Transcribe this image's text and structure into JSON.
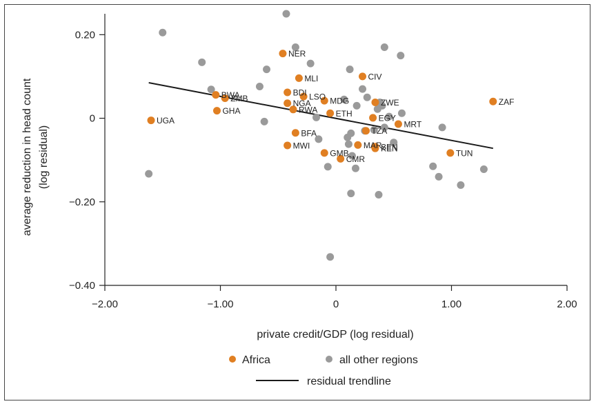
{
  "chart_data": {
    "type": "scatter",
    "xlabel": "private credit/GDP (log residual)",
    "ylabel": [
      "average reduction in head count",
      "(log residual)"
    ],
    "xlim": [
      -2.0,
      2.0
    ],
    "ylim": [
      -0.4,
      0.25
    ],
    "x_ticks": [
      -2.0,
      -1.0,
      0,
      1.0,
      2.0
    ],
    "x_tick_labels": [
      "−2.00",
      "−1.00",
      "0",
      "1.00",
      "2.00"
    ],
    "y_ticks": [
      -0.4,
      -0.2,
      0,
      0.2
    ],
    "y_tick_labels": [
      "−0.40",
      "−0.20",
      "0",
      "0.20"
    ],
    "grid": false,
    "legend_position": "bottom",
    "colors": {
      "africa": "#E07F22",
      "other": "#9A9A9A",
      "trend": "#1a1a1a"
    },
    "series": [
      {
        "name": "Africa",
        "color": "#E07F22",
        "points": [
          {
            "label": "UGA",
            "x": -1.6,
            "y": -0.005
          },
          {
            "label": "BWA",
            "x": -1.04,
            "y": 0.056
          },
          {
            "label": "ZMB",
            "x": -0.96,
            "y": 0.048
          },
          {
            "label": "GHA",
            "x": -1.03,
            "y": 0.018
          },
          {
            "label": "NER",
            "x": -0.46,
            "y": 0.155
          },
          {
            "label": "MLI",
            "x": -0.32,
            "y": 0.096
          },
          {
            "label": "BDI",
            "x": -0.42,
            "y": 0.062
          },
          {
            "label": "LSO",
            "x": -0.28,
            "y": 0.052
          },
          {
            "label": "NGA",
            "x": -0.42,
            "y": 0.036
          },
          {
            "label": "RWA",
            "x": -0.37,
            "y": 0.021
          },
          {
            "label": "MDG",
            "x": -0.1,
            "y": 0.042
          },
          {
            "label": "ETH",
            "x": -0.05,
            "y": 0.012
          },
          {
            "label": "CIV",
            "x": 0.23,
            "y": 0.1
          },
          {
            "label": "ZWE",
            "x": 0.34,
            "y": 0.038
          },
          {
            "label": "EGY",
            "x": 0.32,
            "y": 0.001
          },
          {
            "label": "MRT",
            "x": 0.54,
            "y": -0.014
          },
          {
            "label": "ZAF",
            "x": 1.36,
            "y": 0.04
          },
          {
            "label": "TZA",
            "x": 0.26,
            "y": -0.03
          },
          {
            "label": "BFA",
            "x": -0.35,
            "y": -0.035
          },
          {
            "label": "MWI",
            "x": -0.42,
            "y": -0.065
          },
          {
            "label": "MAR",
            "x": 0.19,
            "y": -0.064
          },
          {
            "label": "SEN",
            "x": 0.34,
            "y": -0.068
          },
          {
            "label": "KEN",
            "x": 0.34,
            "y": -0.072
          },
          {
            "label": "GMB",
            "x": -0.1,
            "y": -0.083
          },
          {
            "label": "CMR",
            "x": 0.04,
            "y": -0.097
          },
          {
            "label": "TUN",
            "x": 0.99,
            "y": -0.083
          }
        ]
      },
      {
        "name": "all other regions",
        "color": "#9A9A9A",
        "points": [
          {
            "x": -0.43,
            "y": 0.25
          },
          {
            "x": -1.5,
            "y": 0.205
          },
          {
            "x": -0.35,
            "y": 0.17
          },
          {
            "x": 0.42,
            "y": 0.17
          },
          {
            "x": 0.56,
            "y": 0.15
          },
          {
            "x": -1.16,
            "y": 0.134
          },
          {
            "x": -0.22,
            "y": 0.131
          },
          {
            "x": -0.6,
            "y": 0.117
          },
          {
            "x": 0.12,
            "y": 0.117
          },
          {
            "x": -0.66,
            "y": 0.076
          },
          {
            "x": -1.08,
            "y": 0.069
          },
          {
            "x": 0.23,
            "y": 0.07
          },
          {
            "x": 0.27,
            "y": 0.05
          },
          {
            "x": 0.07,
            "y": 0.045
          },
          {
            "x": 0.38,
            "y": 0.038
          },
          {
            "x": 0.4,
            "y": 0.03
          },
          {
            "x": 0.18,
            "y": 0.03
          },
          {
            "x": 0.36,
            "y": 0.022
          },
          {
            "x": 0.57,
            "y": 0.012
          },
          {
            "x": 0.46,
            "y": 0.004
          },
          {
            "x": -0.17,
            "y": 0.002
          },
          {
            "x": -0.62,
            "y": -0.008
          },
          {
            "x": 0.92,
            "y": -0.022
          },
          {
            "x": 0.42,
            "y": -0.022
          },
          {
            "x": 0.25,
            "y": -0.03
          },
          {
            "x": 0.33,
            "y": -0.028
          },
          {
            "x": 0.13,
            "y": -0.036
          },
          {
            "x": 0.1,
            "y": -0.046
          },
          {
            "x": -0.15,
            "y": -0.05
          },
          {
            "x": 0.11,
            "y": -0.062
          },
          {
            "x": 0.5,
            "y": -0.058
          },
          {
            "x": 0.14,
            "y": -0.09
          },
          {
            "x": -0.07,
            "y": -0.116
          },
          {
            "x": 0.17,
            "y": -0.12
          },
          {
            "x": 0.84,
            "y": -0.115
          },
          {
            "x": -1.62,
            "y": -0.133
          },
          {
            "x": 0.89,
            "y": -0.14
          },
          {
            "x": 1.28,
            "y": -0.122
          },
          {
            "x": 1.08,
            "y": -0.16
          },
          {
            "x": 0.13,
            "y": -0.18
          },
          {
            "x": 0.37,
            "y": -0.183
          },
          {
            "x": -0.05,
            "y": -0.332
          }
        ]
      }
    ],
    "trendline": {
      "name": "residual trendline",
      "x": [
        -1.62,
        1.36
      ],
      "y": [
        0.085,
        -0.072
      ]
    },
    "legend": [
      {
        "label": "Africa",
        "kind": "dot",
        "color": "#E07F22"
      },
      {
        "label": "all other regions",
        "kind": "dot",
        "color": "#9A9A9A"
      },
      {
        "label": "residual trendline",
        "kind": "line",
        "color": "#1a1a1a"
      }
    ]
  }
}
